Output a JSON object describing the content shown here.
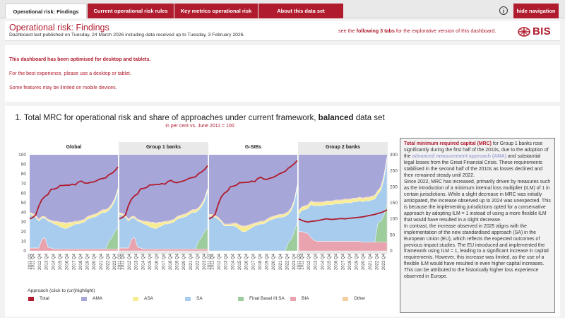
{
  "nav": {
    "tabs": [
      {
        "label": "Operational risk: Findings",
        "active": true
      },
      {
        "label": "Current operational risk rules",
        "active": false
      },
      {
        "label": "Key metrics operational risk",
        "active": false
      },
      {
        "label": "About this data set",
        "active": false
      }
    ],
    "info_icon": "info-icon",
    "info_glyph": "i",
    "hide_navigation_label": "hide navigation"
  },
  "header": {
    "title": "Operational risk: Findings",
    "subtitle": "Dashboard last published on Tuesday, 24 March 2026 including data received up to Tuesday, 3 February 2026.",
    "tabs_note_prefix": "see the ",
    "tabs_note_bold": "following 3 tabs",
    "tabs_note_suffix": " for the explorative version of this dashboard.",
    "logo_text": "BIS"
  },
  "notice": {
    "line1": "This dashboard has been optimised for desktop and tablets.",
    "line2": "For the best experience, please use a desktop or tablet.",
    "line3": "Some features may be limited on mobile devices."
  },
  "colors": {
    "brand_red": "#b01c2e",
    "total": "#b01c2e",
    "ama": "#a6a6d8",
    "asa": "#f7ec8f",
    "sa": "#a8ccee",
    "final_basel_iii_sa": "#9dcc9d",
    "bia": "#e8a3ae",
    "other": "#f3cfa0"
  },
  "chart": {
    "title_prefix": "1. Total MRC for operational risk and share of approaches under current framework, ",
    "title_bold": "balanced",
    "title_suffix": " data set",
    "subtitle": "in per cent vs. June 2011 = 100",
    "legend_title": "Approach (click to (un)highlight)"
  },
  "chart_data": {
    "type": "area",
    "panels": [
      "Global",
      "Group 1 banks",
      "G-SIBs",
      "Group 2 banks"
    ],
    "x_ticks": [
      "2011 Q2",
      "2011 Q4",
      "2012 Q4",
      "2013 Q4",
      "2014 Q4",
      "2015 Q4",
      "2016 Q4",
      "2017 Q4",
      "2018 Q4",
      "2019 Q4",
      "2020 Q4",
      "2021 Q4",
      "2022 Q4",
      "2023 Q4"
    ],
    "y_left": {
      "ticks": [
        0,
        10,
        20,
        30,
        40,
        50,
        60,
        70,
        80,
        90,
        100
      ],
      "range": [
        0,
        100
      ]
    },
    "y_right": {
      "ticks": [
        0,
        50,
        100,
        150,
        200,
        250,
        300
      ],
      "range": [
        0,
        300
      ]
    },
    "legend": [
      "Total",
      "AMA",
      "ASA",
      "SA",
      "Final Basel III SA",
      "BIA",
      "Other"
    ],
    "n_points": 30,
    "series_by_panel": [
      {
        "panel": "Global",
        "total_index": [
          100,
          104,
          112,
          140,
          160,
          170,
          176,
          192,
          193,
          196,
          204,
          204,
          205,
          205,
          208,
          206,
          215,
          218,
          212,
          211,
          214,
          215,
          219,
          224,
          226,
          228,
          238,
          242,
          250,
          262
        ],
        "bia": [
          3,
          3,
          3,
          3,
          12,
          14,
          4,
          3,
          2,
          2,
          2,
          2,
          2,
          2,
          2,
          2,
          2,
          2,
          2,
          2,
          2,
          2,
          2,
          2,
          2,
          2,
          2,
          2,
          2,
          2
        ],
        "final_basel_iii_sa": [
          0,
          0,
          0,
          0,
          0,
          0,
          0,
          0,
          0,
          0,
          0,
          0,
          0,
          0,
          0,
          0,
          0,
          0,
          0,
          0,
          0,
          0,
          0,
          0,
          0,
          0,
          8,
          12,
          18,
          22
        ],
        "sa": [
          35,
          34,
          32,
          28,
          22,
          20,
          27,
          27,
          26,
          25,
          23,
          22,
          21,
          23,
          24,
          26,
          26,
          27,
          28,
          31,
          32,
          33,
          34,
          36,
          38,
          38,
          32,
          32,
          32,
          38
        ],
        "asa": [
          1,
          1,
          1,
          1,
          1,
          1,
          1,
          1,
          2,
          3,
          4,
          5,
          5,
          4,
          3,
          2,
          2,
          2,
          2,
          2,
          2,
          2,
          2,
          2,
          2,
          2,
          2,
          2,
          2,
          2
        ],
        "other": [
          1,
          1,
          1,
          1,
          1,
          1,
          1,
          1,
          1,
          1,
          1,
          1,
          1,
          1,
          1,
          1,
          1,
          1,
          1,
          1,
          1,
          1,
          1,
          1,
          1,
          1,
          1,
          1,
          1,
          1
        ]
      },
      {
        "panel": "Group 1 banks",
        "total_index": [
          100,
          104,
          112,
          142,
          162,
          172,
          178,
          194,
          195,
          198,
          206,
          206,
          207,
          207,
          210,
          208,
          217,
          220,
          214,
          213,
          216,
          218,
          222,
          227,
          229,
          231,
          241,
          246,
          254,
          266
        ],
        "bia": [
          3,
          3,
          3,
          3,
          12,
          14,
          4,
          3,
          2,
          2,
          2,
          2,
          2,
          2,
          2,
          2,
          2,
          2,
          2,
          2,
          2,
          2,
          2,
          2,
          2,
          2,
          2,
          2,
          2,
          2
        ],
        "final_basel_iii_sa": [
          0,
          0,
          0,
          0,
          0,
          0,
          0,
          0,
          0,
          0,
          0,
          0,
          0,
          0,
          0,
          0,
          0,
          0,
          0,
          0,
          0,
          0,
          0,
          0,
          0,
          0,
          8,
          12,
          18,
          22
        ],
        "sa": [
          35,
          34,
          32,
          28,
          22,
          20,
          27,
          27,
          26,
          25,
          23,
          22,
          21,
          23,
          24,
          26,
          26,
          27,
          28,
          31,
          32,
          33,
          34,
          36,
          38,
          38,
          32,
          32,
          32,
          38
        ],
        "asa": [
          1,
          1,
          1,
          1,
          1,
          1,
          1,
          1,
          2,
          3,
          4,
          5,
          5,
          4,
          3,
          2,
          2,
          2,
          2,
          2,
          2,
          2,
          2,
          2,
          2,
          2,
          2,
          2,
          2,
          2
        ],
        "other": [
          1,
          1,
          1,
          1,
          1,
          1,
          1,
          1,
          1,
          1,
          1,
          1,
          1,
          1,
          1,
          1,
          1,
          1,
          1,
          1,
          1,
          1,
          1,
          1,
          1,
          1,
          1,
          1,
          1,
          1
        ]
      },
      {
        "panel": "G-SIBs",
        "total_index": [
          100,
          105,
          114,
          145,
          168,
          180,
          186,
          200,
          202,
          205,
          213,
          213,
          214,
          214,
          218,
          216,
          226,
          230,
          224,
          223,
          227,
          229,
          234,
          240,
          244,
          248,
          258,
          264,
          272,
          282
        ],
        "bia": [
          0,
          0,
          0,
          0,
          0,
          0,
          0,
          0,
          0,
          0,
          0,
          0,
          0,
          0,
          0,
          0,
          0,
          0,
          0,
          0,
          0,
          0,
          0,
          0,
          0,
          0,
          0,
          0,
          0,
          0
        ],
        "final_basel_iii_sa": [
          0,
          0,
          0,
          0,
          0,
          0,
          0,
          0,
          0,
          0,
          0,
          0,
          0,
          0,
          0,
          0,
          0,
          0,
          0,
          0,
          0,
          0,
          0,
          0,
          0,
          0,
          8,
          12,
          20,
          30
        ],
        "sa": [
          36,
          36,
          35,
          33,
          30,
          26,
          26,
          26,
          26,
          25,
          22,
          20,
          20,
          22,
          24,
          26,
          27,
          28,
          28,
          30,
          32,
          33,
          34,
          35,
          35,
          36,
          30,
          30,
          30,
          36
        ],
        "asa": [
          1,
          1,
          1,
          1,
          1,
          1,
          1,
          1,
          2,
          3,
          4,
          5,
          5,
          4,
          3,
          2,
          2,
          2,
          2,
          2,
          2,
          2,
          2,
          2,
          2,
          2,
          2,
          2,
          2,
          2
        ],
        "other": [
          1,
          1,
          1,
          1,
          1,
          1,
          1,
          1,
          1,
          1,
          1,
          1,
          1,
          1,
          1,
          1,
          1,
          1,
          1,
          1,
          1,
          1,
          1,
          1,
          1,
          1,
          1,
          1,
          1,
          1
        ]
      },
      {
        "panel": "Group 2 banks",
        "total_index": [
          100,
          95,
          92,
          90,
          92,
          93,
          94,
          96,
          98,
          100,
          99,
          98,
          99,
          100,
          101,
          100,
          101,
          102,
          103,
          104,
          105,
          106,
          108,
          110,
          112,
          114,
          117,
          119,
          123,
          128
        ],
        "bia": [
          20,
          20,
          19,
          18,
          14,
          11,
          10,
          10,
          10,
          10,
          10,
          10,
          10,
          10,
          10,
          10,
          10,
          10,
          10,
          10,
          10,
          9,
          9,
          9,
          9,
          9,
          9,
          9,
          9,
          9
        ],
        "final_basel_iii_sa": [
          0,
          0,
          0,
          0,
          0,
          0,
          0,
          0,
          0,
          0,
          0,
          0,
          0,
          0,
          0,
          0,
          0,
          0,
          0,
          0,
          0,
          0,
          0,
          0,
          0,
          0,
          20,
          22,
          28,
          40
        ],
        "sa": [
          18,
          22,
          24,
          26,
          34,
          36,
          37,
          37,
          37,
          38,
          38,
          38,
          39,
          39,
          39,
          40,
          40,
          40,
          41,
          41,
          42,
          42,
          43,
          43,
          44,
          45,
          30,
          32,
          38,
          45
        ],
        "asa": [
          3,
          3,
          3,
          3,
          3,
          3,
          3,
          3,
          3,
          3,
          3,
          3,
          3,
          3,
          3,
          3,
          3,
          3,
          3,
          3,
          3,
          3,
          3,
          3,
          3,
          3,
          3,
          3,
          3,
          3
        ],
        "other": [
          1,
          1,
          1,
          1,
          1,
          1,
          1,
          1,
          1,
          1,
          1,
          1,
          1,
          1,
          1,
          1,
          1,
          1,
          1,
          1,
          1,
          1,
          1,
          1,
          1,
          1,
          1,
          1,
          1,
          1
        ]
      }
    ]
  },
  "description": {
    "p1_bold": "Total minimum required capital (MRC)",
    "p1_mid": " for Group 1 banks rose significantly during the first half of the 2010s, due to the adoption of the ",
    "p1_ama": "advanced measurement approach (AMA)",
    "p1_end": " and substantial legal losses from the Great Financial Crisis. These requirements stabilised in the second half of the 2010s as losses declined and then remained steady until 2022.",
    "p2": "Since 2022, MRC has increased, primarily driven by measures such as the introduction of a minimum internal loss multiplier (ILM) of 1 in certain jurisdictions. While a slight decrease in MRC was initially anticipated, the increase observed up to 2024 was unexpected. This is because the implementing jurisdictions opted for a conservative approach by adopting ILM = 1 instead of using a more flexible ILM that would have resulted in a slight decrease.",
    "p3": "In contrast, the increase observed in 2025 aligns with the implementation of the new standardised approach (SA) in the European Union (EU), which reflects the expected outcomes of previous impact studies. The EU introduced and implemented the framework using ILM = 1, leading to a significant increase in capital requirements. However, this increase was limited, as the use of a flexible ILM would have resulted in even higher capital increases. This can be attributed to the historically higher loss experience observed in Europe."
  }
}
